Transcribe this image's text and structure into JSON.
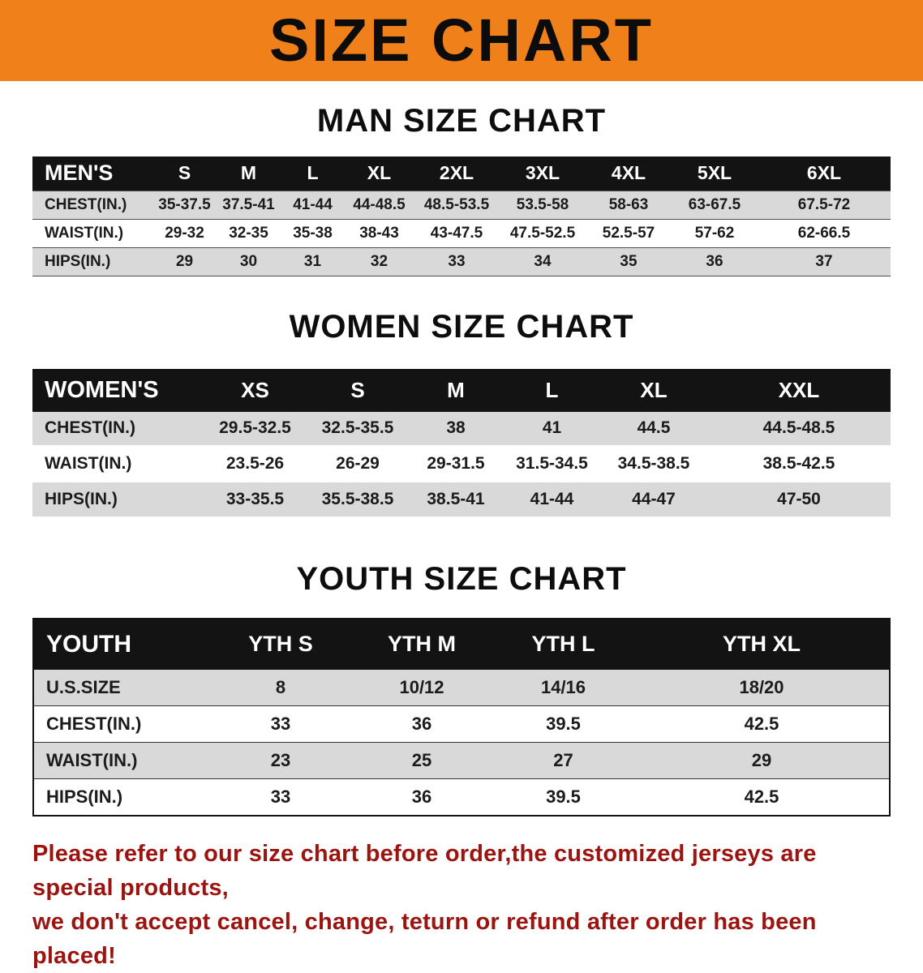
{
  "banner": {
    "title": "SIZE CHART",
    "bg_color": "#f0801a"
  },
  "colors": {
    "banner_bg": "#f0801a",
    "table_header_bg": "#131313",
    "row_shade": "#d9d9d9",
    "footer_text": "#9c1410"
  },
  "men": {
    "heading": "MAN SIZE CHART",
    "header": [
      "MEN'S",
      "S",
      "M",
      "L",
      "XL",
      "2XL",
      "3XL",
      "4XL",
      "5XL",
      "6XL"
    ],
    "rows": [
      [
        "CHEST(IN.)",
        "35-37.5",
        "37.5-41",
        "41-44",
        "44-48.5",
        "48.5-53.5",
        "53.5-58",
        "58-63",
        "63-67.5",
        "67.5-72"
      ],
      [
        "WAIST(IN.)",
        "29-32",
        "32-35",
        "35-38",
        "38-43",
        "43-47.5",
        "47.5-52.5",
        "52.5-57",
        "57-62",
        "62-66.5"
      ],
      [
        "HIPS(IN.)",
        "29",
        "30",
        "31",
        "32",
        "33",
        "34",
        "35",
        "36",
        "37"
      ]
    ]
  },
  "women": {
    "heading": "WOMEN SIZE CHART",
    "header": [
      "WOMEN'S",
      "XS",
      "S",
      "M",
      "L",
      "XL",
      "XXL"
    ],
    "rows": [
      [
        "CHEST(IN.)",
        "29.5-32.5",
        "32.5-35.5",
        "38",
        "41",
        "44.5",
        "44.5-48.5"
      ],
      [
        "WAIST(IN.)",
        "23.5-26",
        "26-29",
        "29-31.5",
        "31.5-34.5",
        "34.5-38.5",
        "38.5-42.5"
      ],
      [
        "HIPS(IN.)",
        "33-35.5",
        "35.5-38.5",
        "38.5-41",
        "41-44",
        "44-47",
        "47-50"
      ]
    ]
  },
  "youth": {
    "heading": "YOUTH SIZE CHART",
    "header": [
      "YOUTH",
      "YTH S",
      "YTH M",
      "YTH L",
      "YTH XL"
    ],
    "rows": [
      [
        "U.S.SIZE",
        "8",
        "10/12",
        "14/16",
        "18/20"
      ],
      [
        "CHEST(IN.)",
        "33",
        "36",
        "39.5",
        "42.5"
      ],
      [
        "WAIST(IN.)",
        "23",
        "25",
        "27",
        "29"
      ],
      [
        "HIPS(IN.)",
        "33",
        "36",
        "39.5",
        "42.5"
      ]
    ]
  },
  "footer": {
    "line1": "Please refer to our size chart before order,the customized jerseys are special products,",
    "line2": "we don't accept cancel, change, teturn or refund after order has been placed!"
  }
}
